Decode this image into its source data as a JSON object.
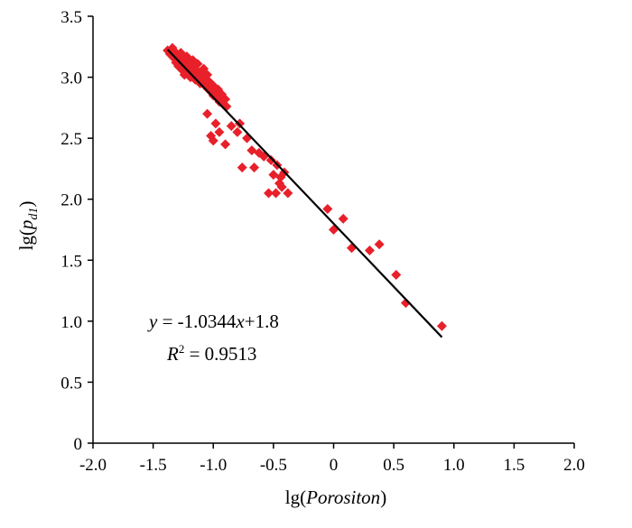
{
  "chart_data": {
    "type": "scatter",
    "title": "",
    "xlabel": {
      "prefix": "lg(",
      "var": "Porositon",
      "suffix": ")"
    },
    "ylabel": {
      "prefix": "lg(",
      "var": "p",
      "sub": "d1",
      "suffix": ")"
    },
    "xlim": [
      -2.0,
      2.0
    ],
    "ylim": [
      0,
      3.5
    ],
    "x_ticks": [
      -2.0,
      -1.5,
      -1.0,
      -0.5,
      0,
      0.5,
      1.0,
      1.5,
      2.0
    ],
    "x_tick_labels": [
      "-2.0",
      "-1.5",
      "-1.0",
      "-0.5",
      "0",
      "0.5",
      "1.0",
      "1.5",
      "2.0"
    ],
    "y_ticks": [
      0,
      0.5,
      1.0,
      1.5,
      2.0,
      2.5,
      3.0,
      3.5
    ],
    "y_tick_labels": [
      "0",
      "0.5",
      "1.0",
      "1.5",
      "2.0",
      "2.5",
      "3.0",
      "3.5"
    ],
    "grid": false,
    "marker_color": "#e8202a",
    "marker_shape": "diamond",
    "points": [
      [
        -1.38,
        3.22
      ],
      [
        -1.36,
        3.19
      ],
      [
        -1.34,
        3.24
      ],
      [
        -1.33,
        3.16
      ],
      [
        -1.32,
        3.21
      ],
      [
        -1.31,
        3.12
      ],
      [
        -1.3,
        3.18
      ],
      [
        -1.29,
        3.09
      ],
      [
        -1.28,
        3.15
      ],
      [
        -1.27,
        3.2
      ],
      [
        -1.26,
        3.06
      ],
      [
        -1.25,
        3.13
      ],
      [
        -1.24,
        3.02
      ],
      [
        -1.23,
        3.1
      ],
      [
        -1.22,
        3.17
      ],
      [
        -1.21,
        3.05
      ],
      [
        -1.2,
        3.11
      ],
      [
        -1.19,
        3.0
      ],
      [
        -1.18,
        3.08
      ],
      [
        -1.17,
        3.14
      ],
      [
        -1.16,
        3.03
      ],
      [
        -1.15,
        2.98
      ],
      [
        -1.14,
        3.06
      ],
      [
        -1.13,
        3.11
      ],
      [
        -1.12,
        3.01
      ],
      [
        -1.11,
        2.95
      ],
      [
        -1.1,
        3.04
      ],
      [
        -1.09,
        2.99
      ],
      [
        -1.08,
        3.07
      ],
      [
        -1.07,
        2.93
      ],
      [
        -1.06,
        2.97
      ],
      [
        -1.05,
        3.02
      ],
      [
        -1.04,
        2.9
      ],
      [
        -1.03,
        2.96
      ],
      [
        -1.02,
        2.88
      ],
      [
        -1.01,
        2.94
      ],
      [
        -1.0,
        2.85
      ],
      [
        -0.99,
        2.92
      ],
      [
        -0.98,
        2.87
      ],
      [
        -0.97,
        2.83
      ],
      [
        -0.96,
        2.9
      ],
      [
        -0.95,
        2.8
      ],
      [
        -0.93,
        2.86
      ],
      [
        -0.92,
        2.78
      ],
      [
        -0.9,
        2.82
      ],
      [
        -0.89,
        2.76
      ],
      [
        -1.05,
        2.7
      ],
      [
        -1.02,
        2.52
      ],
      [
        -1.0,
        2.48
      ],
      [
        -0.98,
        2.62
      ],
      [
        -0.95,
        2.55
      ],
      [
        -0.9,
        2.45
      ],
      [
        -0.85,
        2.6
      ],
      [
        -0.8,
        2.55
      ],
      [
        -0.78,
        2.62
      ],
      [
        -0.76,
        2.26
      ],
      [
        -0.72,
        2.5
      ],
      [
        -0.68,
        2.4
      ],
      [
        -0.66,
        2.26
      ],
      [
        -0.62,
        2.38
      ],
      [
        -0.58,
        2.35
      ],
      [
        -0.54,
        2.05
      ],
      [
        -0.52,
        2.32
      ],
      [
        -0.5,
        2.2
      ],
      [
        -0.48,
        2.05
      ],
      [
        -0.47,
        2.28
      ],
      [
        -0.45,
        2.13
      ],
      [
        -0.44,
        2.18
      ],
      [
        -0.43,
        2.1
      ],
      [
        -0.41,
        2.22
      ],
      [
        -0.38,
        2.05
      ],
      [
        -0.05,
        1.92
      ],
      [
        0.0,
        1.75
      ],
      [
        0.08,
        1.84
      ],
      [
        0.15,
        1.6
      ],
      [
        0.3,
        1.58
      ],
      [
        0.38,
        1.63
      ],
      [
        0.52,
        1.38
      ],
      [
        0.6,
        1.15
      ],
      [
        0.9,
        0.96
      ]
    ],
    "trendline": {
      "slope": -1.0344,
      "intercept": 1.8,
      "x_range": [
        -1.38,
        0.9
      ],
      "color": "#000000"
    },
    "annotation": {
      "equation_y": "y",
      "equation_rest": " = -1.0344",
      "equation_x": "x",
      "equation_tail": "+1.8",
      "r2_label": "R",
      "r2_sup": "2",
      "r2_value": " = 0.9513"
    }
  }
}
